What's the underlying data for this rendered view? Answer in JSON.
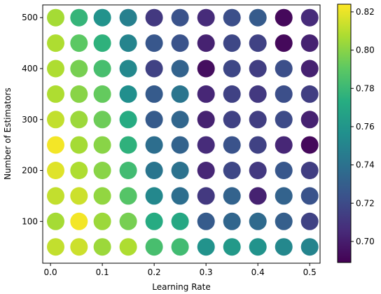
{
  "chart_data": {
    "type": "scatter",
    "xlabel": "Learning Rate",
    "ylabel": "Number of Estimators",
    "xlim": [
      -0.015,
      0.52
    ],
    "ylim": [
      18,
      525
    ],
    "x_ticks": [
      "0.0",
      "0.1",
      "0.2",
      "0.3",
      "0.4",
      "0.5"
    ],
    "x_tick_values": [
      0.0,
      0.1,
      0.2,
      0.3,
      0.4,
      0.5
    ],
    "y_ticks": [
      "100",
      "200",
      "300",
      "400",
      "500"
    ],
    "y_tick_values": [
      100,
      200,
      300,
      400,
      500
    ],
    "x": [
      0.01,
      0.055,
      0.1,
      0.15,
      0.2,
      0.25,
      0.3,
      0.35,
      0.4,
      0.45,
      0.5
    ],
    "y": [
      50,
      100,
      150,
      200,
      250,
      300,
      350,
      400,
      450,
      500
    ],
    "colorbar": {
      "range": [
        0.689,
        0.824
      ],
      "ticks": [
        "0.70",
        "0.72",
        "0.74",
        "0.76",
        "0.78",
        "0.80",
        "0.82"
      ],
      "tick_values": [
        0.7,
        0.72,
        0.74,
        0.76,
        0.78,
        0.8,
        0.82
      ],
      "colormap": "viridis"
    },
    "values": [
      [
        0.812,
        0.814,
        0.804,
        0.808,
        0.784,
        0.782,
        0.758,
        0.762,
        0.758,
        0.752,
        0.75
      ],
      [
        0.806,
        0.822,
        0.804,
        0.796,
        0.772,
        0.77,
        0.728,
        0.734,
        0.736,
        0.73,
        0.716
      ],
      [
        0.812,
        0.814,
        0.802,
        0.788,
        0.752,
        0.738,
        0.712,
        0.732,
        0.702,
        0.732,
        0.724
      ],
      [
        0.818,
        0.808,
        0.8,
        0.782,
        0.742,
        0.74,
        0.704,
        0.718,
        0.712,
        0.726,
        0.714
      ],
      [
        0.822,
        0.806,
        0.8,
        0.776,
        0.738,
        0.732,
        0.706,
        0.724,
        0.716,
        0.704,
        0.692
      ],
      [
        0.812,
        0.804,
        0.794,
        0.772,
        0.728,
        0.734,
        0.702,
        0.716,
        0.714,
        0.72,
        0.702
      ],
      [
        0.808,
        0.8,
        0.792,
        0.756,
        0.728,
        0.742,
        0.704,
        0.716,
        0.712,
        0.722,
        0.714
      ],
      [
        0.808,
        0.796,
        0.784,
        0.752,
        0.716,
        0.732,
        0.694,
        0.718,
        0.714,
        0.722,
        0.702
      ],
      [
        0.808,
        0.79,
        0.776,
        0.75,
        0.726,
        0.724,
        0.702,
        0.718,
        0.716,
        0.692,
        0.702
      ],
      [
        0.806,
        0.778,
        0.758,
        0.748,
        0.712,
        0.724,
        0.706,
        0.722,
        0.728,
        0.692,
        0.706
      ]
    ]
  }
}
